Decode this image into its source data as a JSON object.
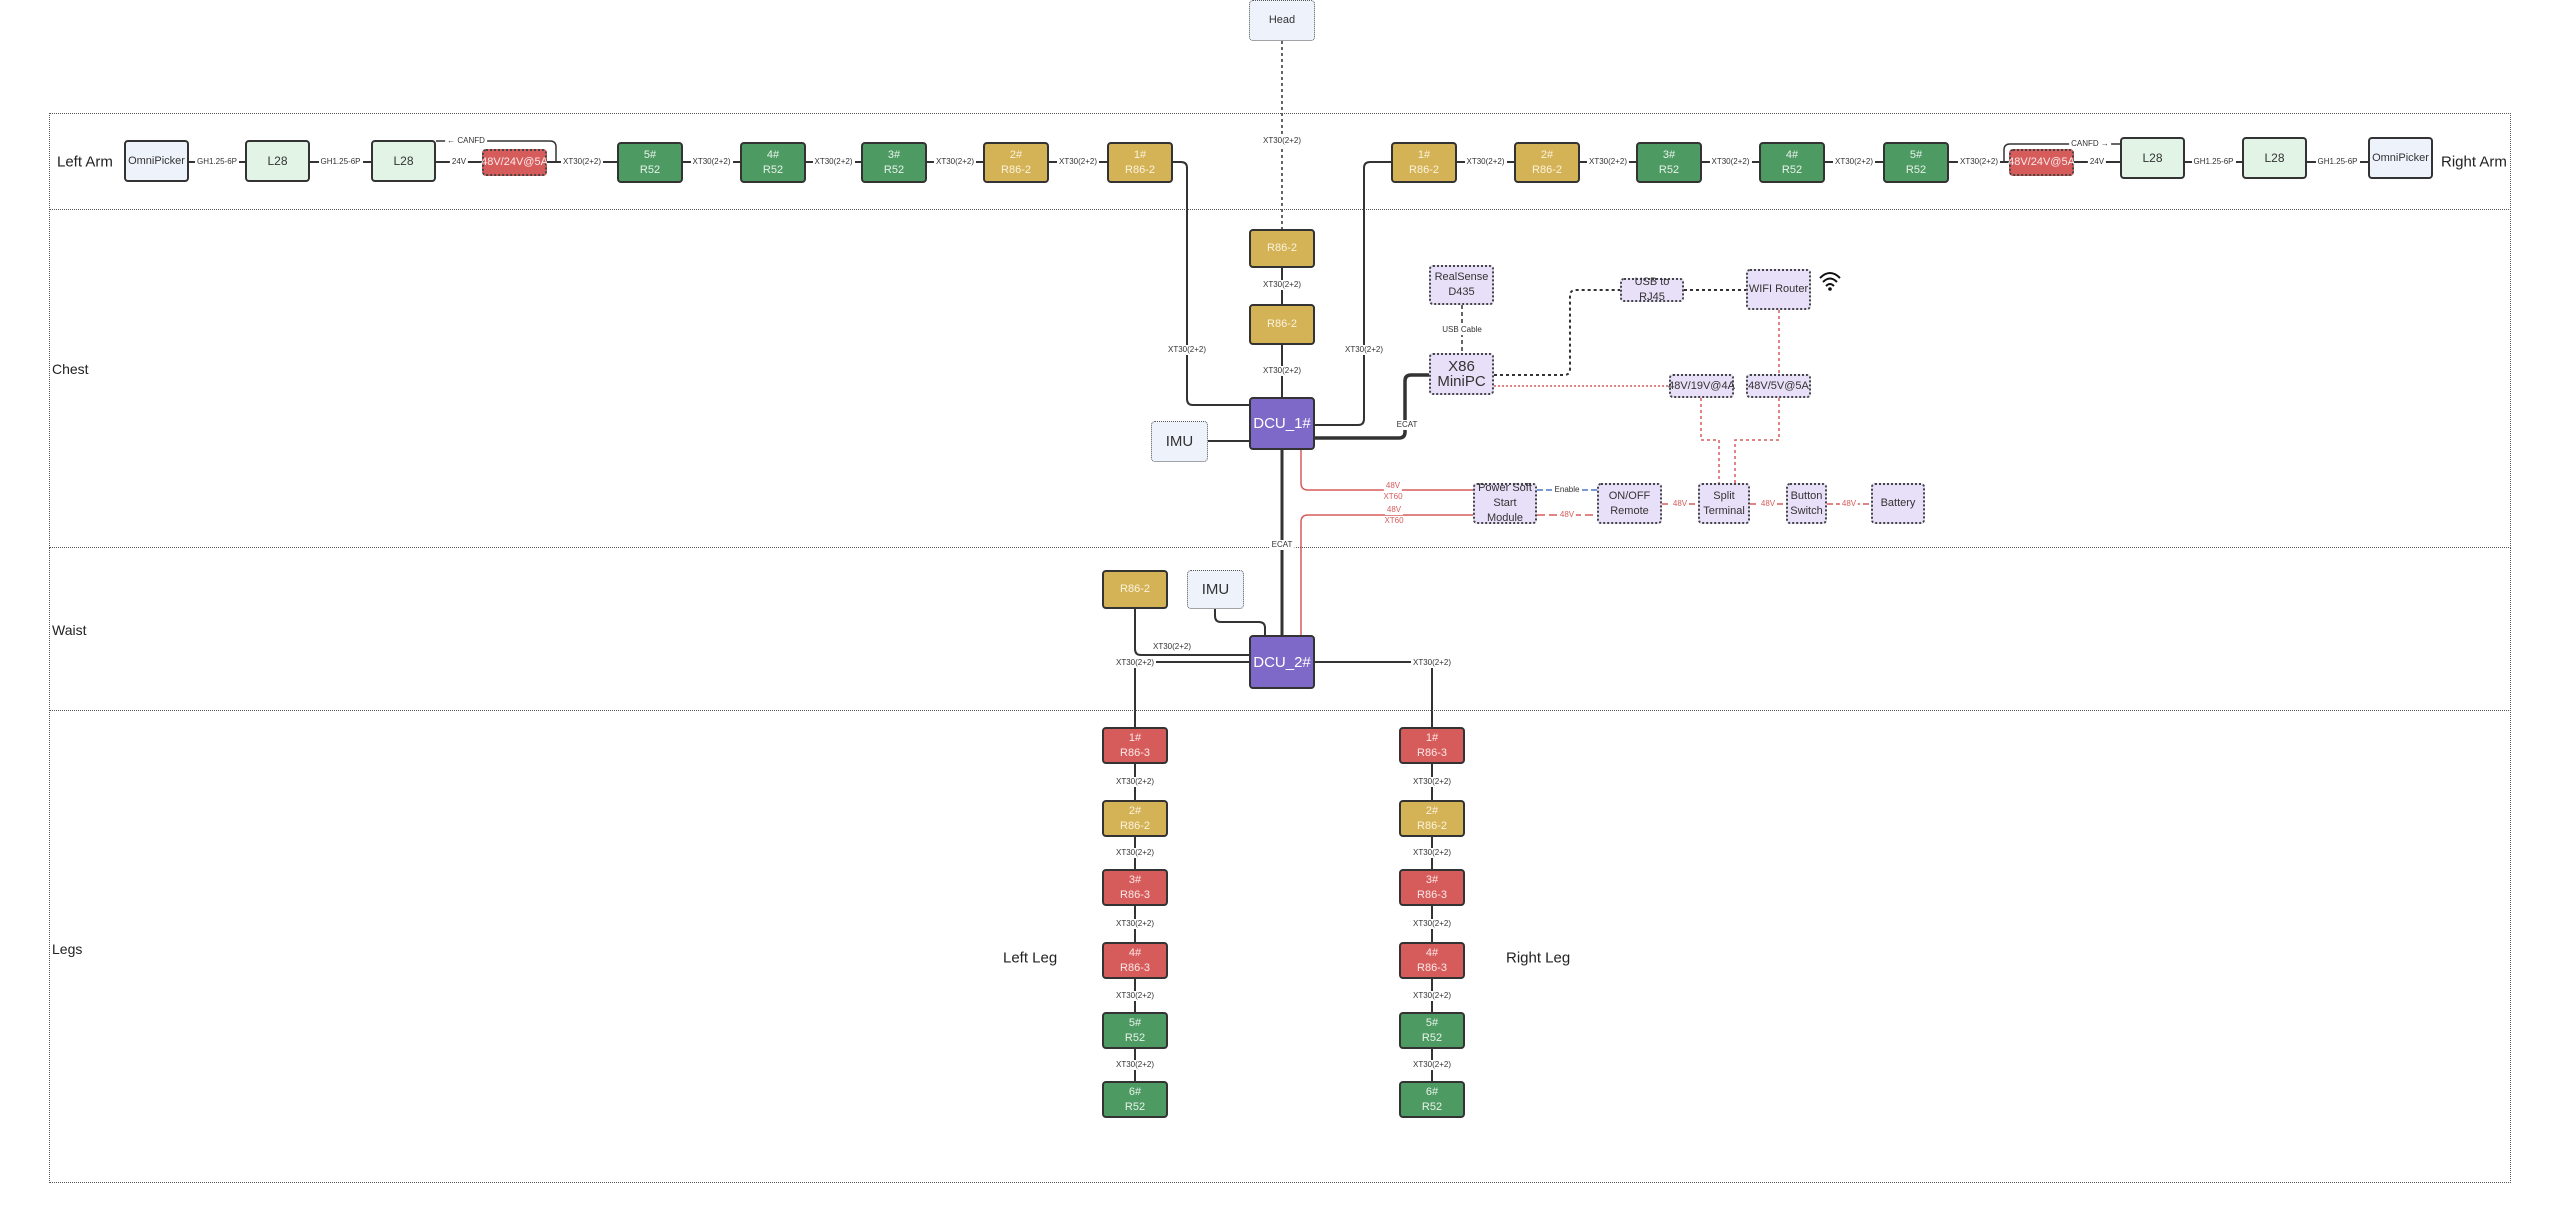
{
  "regions": {
    "left_arm": "Left Arm",
    "right_arm": "Right Arm",
    "chest": "Chest",
    "waist": "Waist",
    "legs": "Legs",
    "left_leg": "Left Leg",
    "right_leg": "Right Leg"
  },
  "colors": {
    "r52": "#4e9a63",
    "r86_2": "#d4b256",
    "r86_3": "#d65c5c",
    "dcu": "#7e68c8",
    "power_line": "#d65c5c",
    "enable_line": "#4a78c8"
  },
  "nodes": [
    {
      "id": "head",
      "lines": [
        "Head"
      ],
      "kind": "lblue"
    },
    {
      "id": "la_omni",
      "lines": [
        "OmniPicker"
      ],
      "kind": "lblue solid"
    },
    {
      "id": "la_l28a",
      "lines": [
        "L28"
      ],
      "kind": "lgreen"
    },
    {
      "id": "la_l28b",
      "lines": [
        "L28"
      ],
      "kind": "lgreen"
    },
    {
      "id": "la_psu",
      "lines": [
        "48V/24V@5A"
      ],
      "kind": "reddot"
    },
    {
      "id": "la_5",
      "lines": [
        "5#",
        "R52"
      ],
      "kind": "green"
    },
    {
      "id": "la_4",
      "lines": [
        "4#",
        "R52"
      ],
      "kind": "green"
    },
    {
      "id": "la_3",
      "lines": [
        "3#",
        "R52"
      ],
      "kind": "green"
    },
    {
      "id": "la_2",
      "lines": [
        "2#",
        "R86-2"
      ],
      "kind": "gold"
    },
    {
      "id": "la_1",
      "lines": [
        "1#",
        "R86-2"
      ],
      "kind": "gold"
    },
    {
      "id": "ra_1",
      "lines": [
        "1#",
        "R86-2"
      ],
      "kind": "gold"
    },
    {
      "id": "ra_2",
      "lines": [
        "2#",
        "R86-2"
      ],
      "kind": "gold"
    },
    {
      "id": "ra_3",
      "lines": [
        "3#",
        "R52"
      ],
      "kind": "green"
    },
    {
      "id": "ra_4",
      "lines": [
        "4#",
        "R52"
      ],
      "kind": "green"
    },
    {
      "id": "ra_5",
      "lines": [
        "5#",
        "R52"
      ],
      "kind": "green"
    },
    {
      "id": "ra_psu",
      "lines": [
        "48V/24V@5A"
      ],
      "kind": "reddot"
    },
    {
      "id": "ra_l28a",
      "lines": [
        "L28"
      ],
      "kind": "lgreen"
    },
    {
      "id": "ra_l28b",
      "lines": [
        "L28"
      ],
      "kind": "lgreen"
    },
    {
      "id": "ra_omni",
      "lines": [
        "OmniPicker"
      ],
      "kind": "lblue solid"
    },
    {
      "id": "neck_1",
      "lines": [
        "R86-2"
      ],
      "kind": "gold"
    },
    {
      "id": "neck_2",
      "lines": [
        "R86-2"
      ],
      "kind": "gold"
    },
    {
      "id": "dcu1",
      "lines": [
        "DCU_1#"
      ],
      "kind": "purple"
    },
    {
      "id": "imu1",
      "lines": [
        "IMU"
      ],
      "kind": "lblue big"
    },
    {
      "id": "realsense",
      "lines": [
        "RealSense",
        "D435"
      ],
      "kind": "lav"
    },
    {
      "id": "x86",
      "lines": [
        "X86",
        "MiniPC"
      ],
      "kind": "lav big"
    },
    {
      "id": "usb_rj45",
      "lines": [
        "USB to RJ45"
      ],
      "kind": "lav"
    },
    {
      "id": "wifi",
      "lines": [
        "WIFI Router"
      ],
      "kind": "lav"
    },
    {
      "id": "dcdc19",
      "lines": [
        "48V/19V@4A"
      ],
      "kind": "lav"
    },
    {
      "id": "dcdc5",
      "lines": [
        "48V/5V@5A"
      ],
      "kind": "lav"
    },
    {
      "id": "softstart",
      "lines": [
        "Power Soft",
        "Start Module"
      ],
      "kind": "lav"
    },
    {
      "id": "onoff",
      "lines": [
        "ON/OFF",
        "Remote"
      ],
      "kind": "lav"
    },
    {
      "id": "split",
      "lines": [
        "Split",
        "Terminal"
      ],
      "kind": "lav"
    },
    {
      "id": "button",
      "lines": [
        "Button",
        "Switch"
      ],
      "kind": "lav"
    },
    {
      "id": "battery",
      "lines": [
        "Battery"
      ],
      "kind": "lav"
    },
    {
      "id": "waist_r86",
      "lines": [
        "R86-2"
      ],
      "kind": "gold"
    },
    {
      "id": "imu2",
      "lines": [
        "IMU"
      ],
      "kind": "lblue big"
    },
    {
      "id": "dcu2",
      "lines": [
        "DCU_2#"
      ],
      "kind": "purple"
    },
    {
      "id": "ll_1",
      "lines": [
        "1#",
        "R86-3"
      ],
      "kind": "red"
    },
    {
      "id": "ll_2",
      "lines": [
        "2#",
        "R86-2"
      ],
      "kind": "gold"
    },
    {
      "id": "ll_3",
      "lines": [
        "3#",
        "R86-3"
      ],
      "kind": "red"
    },
    {
      "id": "ll_4",
      "lines": [
        "4#",
        "R86-3"
      ],
      "kind": "red"
    },
    {
      "id": "ll_5",
      "lines": [
        "5#",
        "R52"
      ],
      "kind": "green"
    },
    {
      "id": "ll_6",
      "lines": [
        "6#",
        "R52"
      ],
      "kind": "green"
    },
    {
      "id": "rl_1",
      "lines": [
        "1#",
        "R86-3"
      ],
      "kind": "red"
    },
    {
      "id": "rl_2",
      "lines": [
        "2#",
        "R86-2"
      ],
      "kind": "gold"
    },
    {
      "id": "rl_3",
      "lines": [
        "3#",
        "R86-3"
      ],
      "kind": "red"
    },
    {
      "id": "rl_4",
      "lines": [
        "4#",
        "R86-3"
      ],
      "kind": "red"
    },
    {
      "id": "rl_5",
      "lines": [
        "5#",
        "R52"
      ],
      "kind": "green"
    },
    {
      "id": "rl_6",
      "lines": [
        "6#",
        "R52"
      ],
      "kind": "green"
    }
  ],
  "edge_labels": {
    "gh": "GH1.25-6P",
    "v24": "24V",
    "xt30": "XT30(2+2)",
    "canfd_left": "← CANFD",
    "canfd_right": "CANFD →",
    "ecat": "ECAT",
    "usb_cable": "USB Cable",
    "v48": "48V",
    "xt60": "XT60",
    "enable": "Enable"
  },
  "icons": {
    "wifi": "wifi-icon"
  }
}
